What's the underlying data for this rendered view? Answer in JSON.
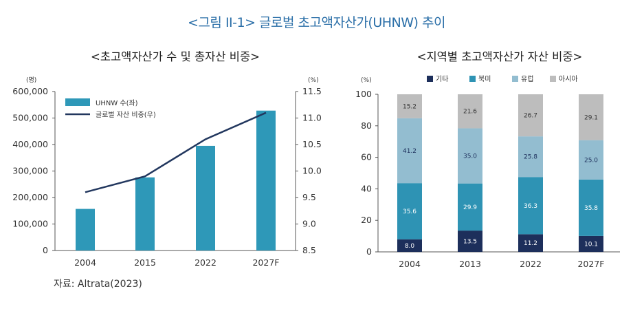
{
  "page_title": "<그림 II-1> 글로벌 초고액자산가(UHNW) 추이",
  "source": "자료: Altrata(2023)",
  "colors": {
    "title_blue": "#2b6fa8",
    "bar_teal": "#2e98b8",
    "line_navy": "#22375e",
    "etc_navy": "#1d2f5b",
    "na_teal": "#2e93b4",
    "eu_lightblue": "#93bdd0",
    "asia_gray": "#bdbdbd"
  },
  "chart_data": [
    {
      "type": "bar+line",
      "title": "<초고액자산가 수 및 총자산 비중>",
      "categories": [
        "2004",
        "2015",
        "2022",
        "2027F"
      ],
      "left_unit": "(명)",
      "right_unit": "(%)",
      "left_ticks": [
        "0",
        "100,000",
        "200,000",
        "300,000",
        "400,000",
        "500,000",
        "600,000"
      ],
      "right_ticks": [
        "8.5",
        "9.0",
        "9.5",
        "10.0",
        "10.5",
        "11.0",
        "11.5"
      ],
      "ylim_left": [
        0,
        600000
      ],
      "ylim_right": [
        8.5,
        11.5
      ],
      "legend": [
        "UHNW 수(좌)",
        "글로벌 자산 비중(우)"
      ],
      "series": [
        {
          "name": "UHNW 수(좌)",
          "kind": "bar",
          "axis": "left",
          "values": [
            157000,
            276000,
            395000,
            528000
          ]
        },
        {
          "name": "글로벌 자산 비중(우)",
          "kind": "line",
          "axis": "right",
          "values": [
            9.6,
            9.9,
            10.6,
            11.1
          ]
        }
      ]
    },
    {
      "type": "stacked_bar",
      "title": "<지역별 초고액자산가 자산 비중>",
      "categories": [
        "2004",
        "2013",
        "2022",
        "2027F"
      ],
      "unit": "(%)",
      "ylim": [
        0,
        100
      ],
      "y_ticks": [
        "0",
        "20",
        "40",
        "60",
        "80",
        "100"
      ],
      "legend": [
        "기타",
        "북미",
        "유럽",
        "아시아"
      ],
      "series": [
        {
          "name": "기타",
          "values": [
            8.0,
            13.5,
            11.2,
            10.1
          ],
          "labels": [
            "8.0",
            "13.5",
            "11.2",
            "10.1"
          ]
        },
        {
          "name": "북미",
          "values": [
            35.6,
            29.9,
            36.3,
            35.8
          ],
          "labels": [
            "35.6",
            "29.9",
            "36.3",
            "35.8"
          ]
        },
        {
          "name": "유럽",
          "values": [
            41.2,
            35.0,
            25.8,
            25.0
          ],
          "labels": [
            "41.2",
            "35.0",
            "25.8",
            "25.0"
          ]
        },
        {
          "name": "아시아",
          "values": [
            15.2,
            21.6,
            26.7,
            29.1
          ],
          "labels": [
            "15.2",
            "21.6",
            "26.7",
            "29.1"
          ]
        }
      ]
    }
  ]
}
